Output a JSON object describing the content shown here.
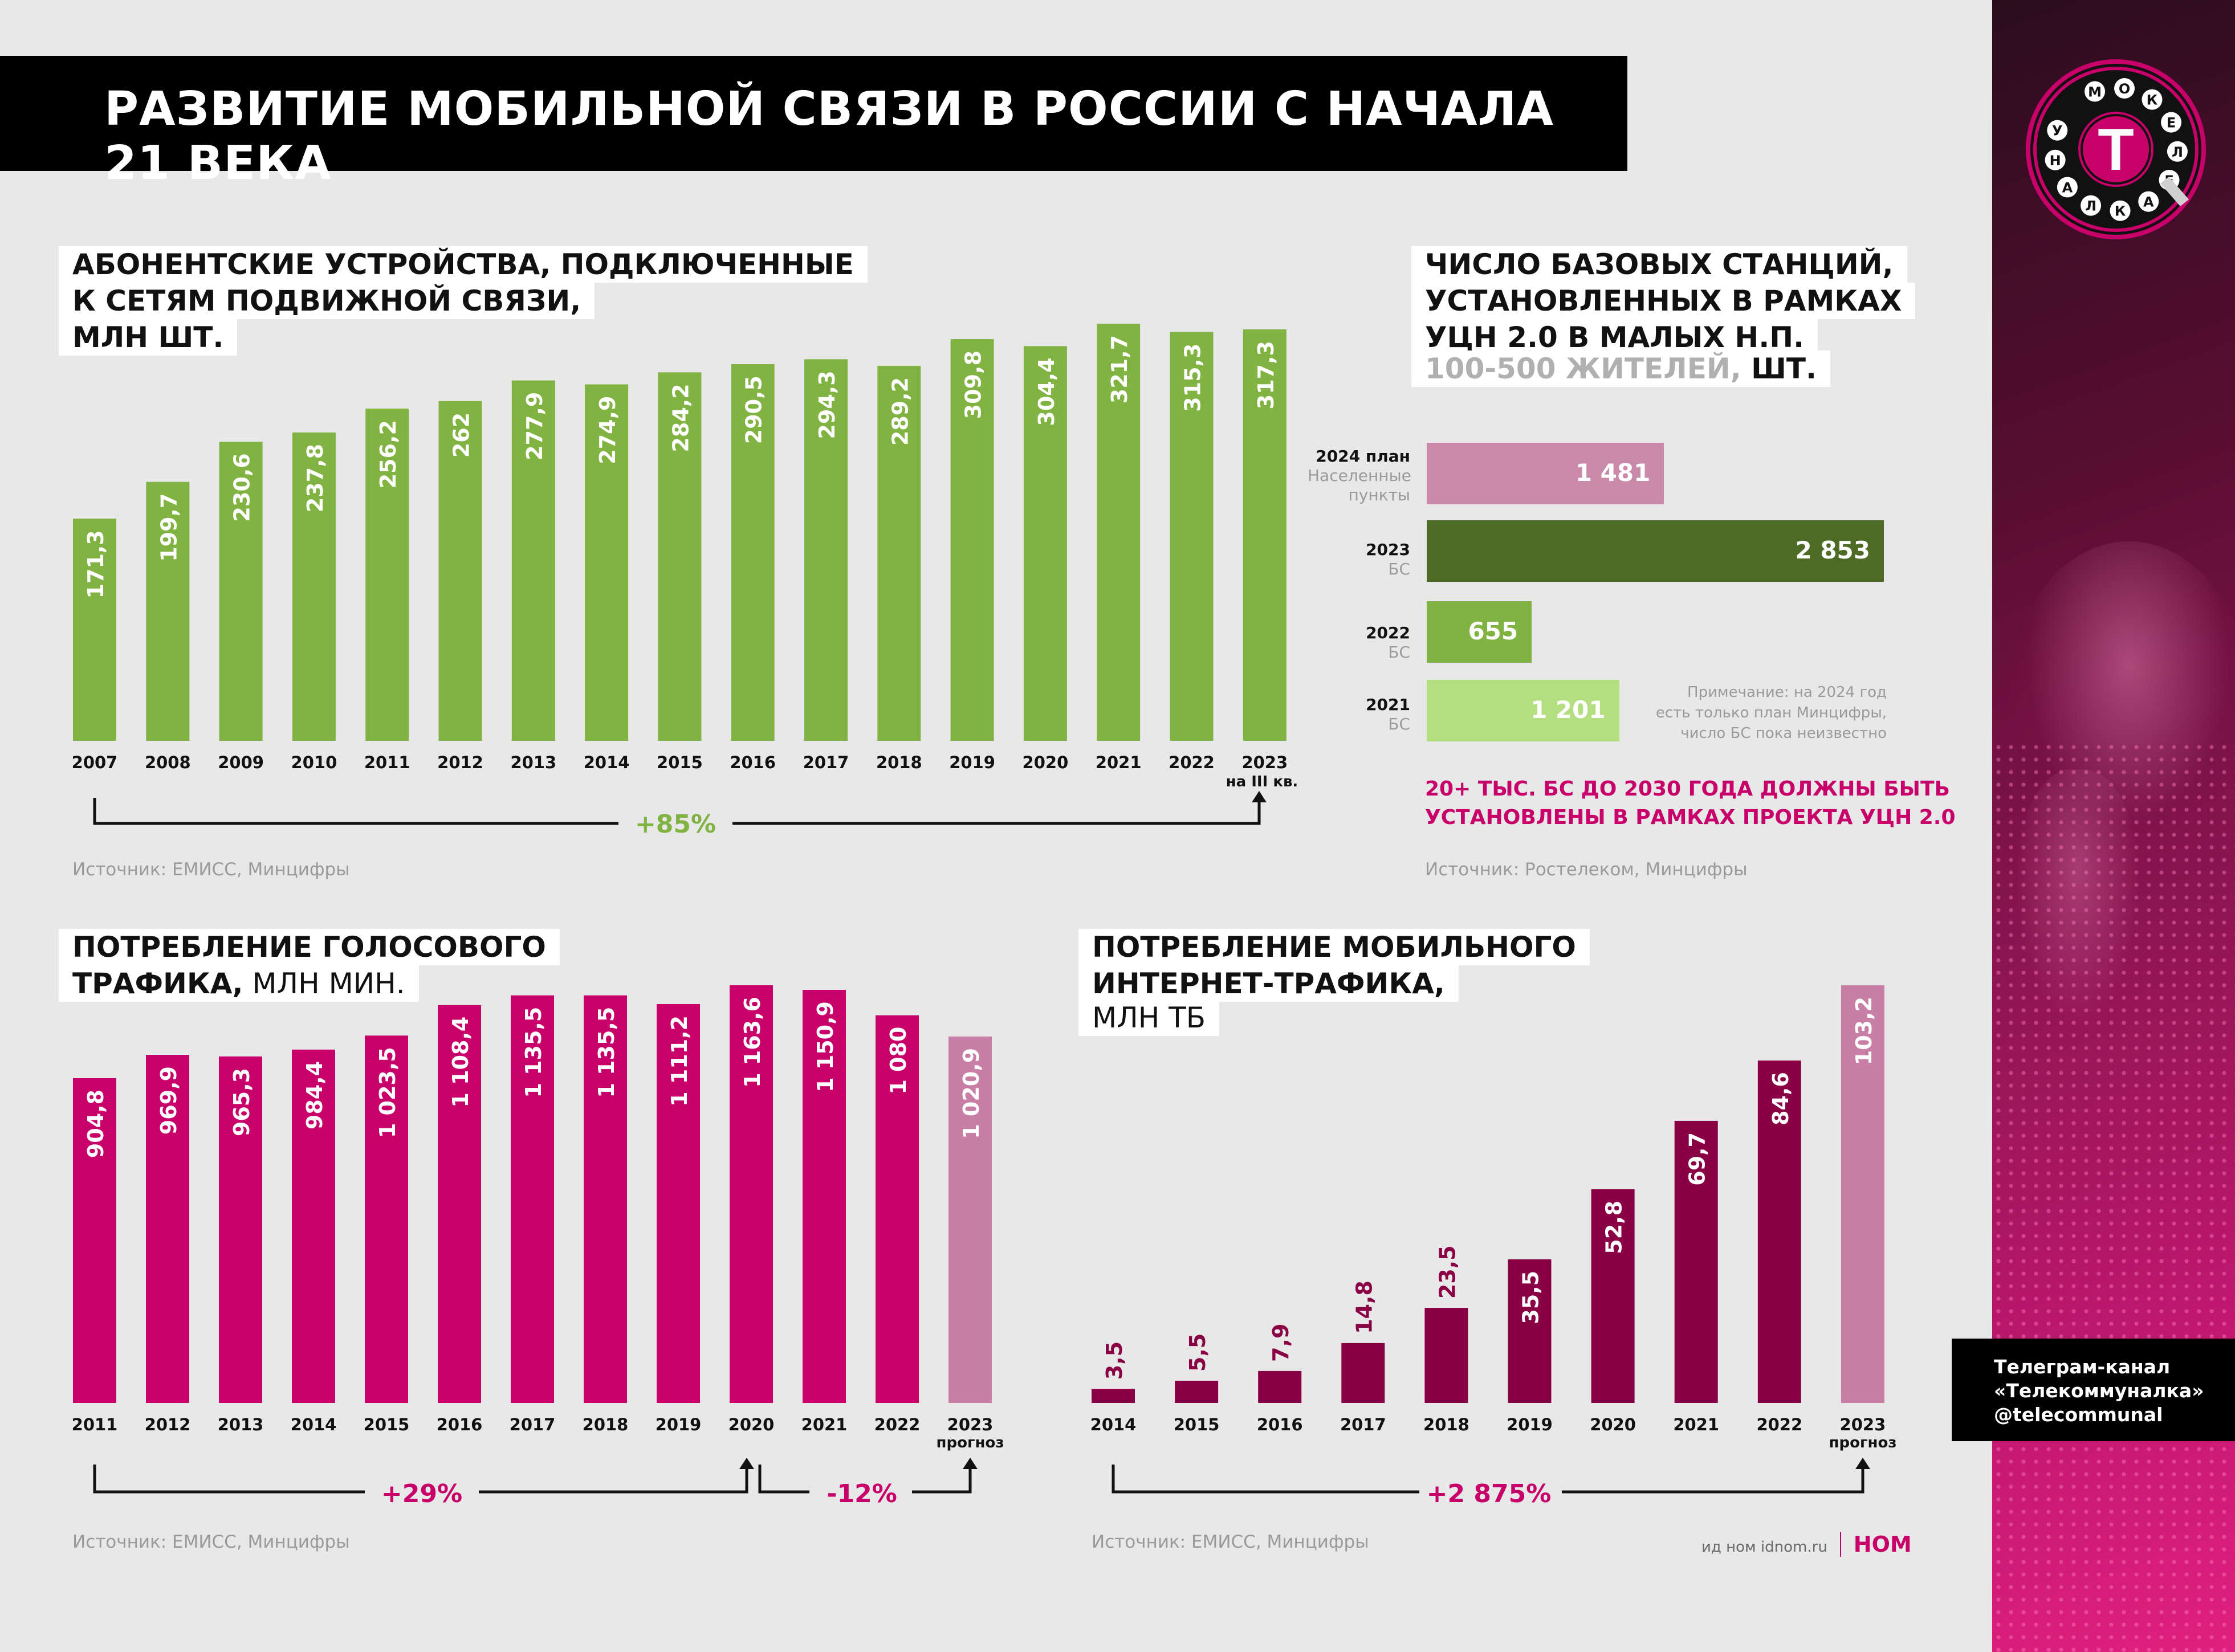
{
  "title": "РАЗВИТИЕ МОБИЛЬНОЙ СВЯЗИ В РОССИИ С НАЧАЛА 21 ВЕКА",
  "logo": {
    "letter": "T",
    "ring": [
      "М",
      "О",
      "К",
      "Е",
      "Л",
      "Е",
      "А",
      "К",
      "Л",
      "А",
      "Н",
      "У"
    ]
  },
  "devices": {
    "title_lines": [
      "АБОНЕНТСКИЕ УСТРОЙСТВА, ПОДКЛЮЧЕННЫЕ",
      "К СЕТЯМ ПОДВИЖНОЙ СВЯЗИ,",
      "МЛН ШТ."
    ],
    "note_2023": "на III кв.",
    "growth": "+85%",
    "source": "Источник: ЕМИСС, Минцифры",
    "color": "#80b341"
  },
  "base_stations": {
    "title_lines": [
      "ЧИСЛО БАЗОВЫХ СТАНЦИЙ,",
      "УСТАНОВЛЕННЫХ В РАМКАХ",
      "УЦН 2.0 В МАЛЫХ Н.П."
    ],
    "title_grey": "100-500 ЖИТЕЛЕЙ,",
    "title_tail": " ШТ.",
    "rows": [
      {
        "year": "2024 план",
        "sub": "Населенные пункты",
        "value_label": "1 481",
        "value": 1481,
        "color": "#c98aa9"
      },
      {
        "year": "2023",
        "sub": "БС",
        "value_label": "2 853",
        "value": 2853,
        "color": "#4d6b24"
      },
      {
        "year": "2022",
        "sub": "БС",
        "value_label": "655",
        "value": 655,
        "color": "#80b341"
      },
      {
        "year": "2021",
        "sub": "БС",
        "value_label": "1 201",
        "value": 1201,
        "color": "#b4df80"
      }
    ],
    "note_lines": [
      "Примечание: на 2024 год",
      "есть только план Минцифры,",
      "число БС пока неизвестно"
    ],
    "pink_lines": [
      "20+ ТЫС. БС ДО 2030 ГОДА ДОЛЖНЫ БЫТЬ",
      "УСТАНОВЛЕНЫ В РАМКАХ ПРОЕКТА УЦН 2.0"
    ],
    "source": "Источник: Ростелеком, Минцифры"
  },
  "voice": {
    "title_lines": [
      "ПОТРЕБЛЕНИЕ ГОЛОСОВОГО",
      "ТРАФИКА,"
    ],
    "title_tail": " МЛН МИН.",
    "note_2023": "прогноз",
    "growth_1": "+29%",
    "growth_2": "-12%",
    "source": "Источник: ЕМИСС, Минцифры",
    "color": "#c8006a",
    "forecast_color": "#c97fa5"
  },
  "internet": {
    "title_lines": [
      "ПОТРЕБЛЕНИЕ МОБИЛЬНОГО",
      "ИНТЕРНЕТ-ТРАФИКА,",
      "МЛН ТБ"
    ],
    "note_2023": "прогноз",
    "growth": "+2 875%",
    "source": "Источник: ЕМИСС, Минцифры",
    "color": "#8a0045",
    "forecast_color": "#c97fa5"
  },
  "telegram": [
    "Телеграм-канал",
    "«Телекоммуналка»",
    "@telecommunal"
  ],
  "footer": {
    "text": "ид ном idnom.ru",
    "brand": "НОМ"
  },
  "chart_data": [
    {
      "type": "bar",
      "title": "Абонентские устройства, подключенные к сетям подвижной связи, млн шт.",
      "categories": [
        "2007",
        "2008",
        "2009",
        "2010",
        "2011",
        "2012",
        "2013",
        "2014",
        "2015",
        "2016",
        "2017",
        "2018",
        "2019",
        "2020",
        "2021",
        "2022",
        "2023"
      ],
      "values": [
        171.3,
        199.7,
        230.6,
        237.8,
        256.2,
        262,
        277.9,
        274.9,
        284.2,
        290.5,
        294.3,
        289.2,
        309.8,
        304.4,
        321.7,
        315.3,
        317.3
      ],
      "labels": [
        "171,3",
        "199,7",
        "230,6",
        "237,8",
        "256,2",
        "262",
        "277,9",
        "274,9",
        "284,2",
        "290,5",
        "294,3",
        "289,2",
        "309,8",
        "304,4",
        "321,7",
        "315,3",
        "317,3"
      ],
      "ylim": [
        0,
        321.7
      ]
    },
    {
      "type": "bar",
      "title": "Потребление голосового трафика, млн мин.",
      "categories": [
        "2011",
        "2012",
        "2013",
        "2014",
        "2015",
        "2016",
        "2017",
        "2018",
        "2019",
        "2020",
        "2021",
        "2022",
        "2023"
      ],
      "values": [
        904.8,
        969.9,
        965.3,
        984.4,
        1023.5,
        1108.4,
        1135.5,
        1135.5,
        1111.2,
        1163.6,
        1150.9,
        1080,
        1020.9
      ],
      "labels": [
        "904,8",
        "969,9",
        "965,3",
        "984,4",
        "1 023,5",
        "1 108,4",
        "1 135,5",
        "1 135,5",
        "1 111,2",
        "1 163,6",
        "1 150,9",
        "1 080",
        "1 020,9"
      ],
      "forecast": [
        false,
        false,
        false,
        false,
        false,
        false,
        false,
        false,
        false,
        false,
        false,
        false,
        true
      ],
      "ylim": [
        0,
        1163.6
      ]
    },
    {
      "type": "bar",
      "title": "Потребление мобильного интернет-трафика, млн ТБ",
      "categories": [
        "2014",
        "2015",
        "2016",
        "2017",
        "2018",
        "2019",
        "2020",
        "2021",
        "2022",
        "2023"
      ],
      "values": [
        3.5,
        5.5,
        7.9,
        14.8,
        23.5,
        35.5,
        52.8,
        69.7,
        84.6,
        103.2
      ],
      "labels": [
        "3,5",
        "5,5",
        "7,9",
        "14,8",
        "23,5",
        "35,5",
        "52,8",
        "69,7",
        "84,6",
        "103,2"
      ],
      "forecast": [
        false,
        false,
        false,
        false,
        false,
        false,
        false,
        false,
        false,
        true
      ],
      "ylim": [
        0,
        103.2
      ]
    },
    {
      "type": "bar",
      "title": "Число базовых станций, установленных в рамках УЦН 2.0 в малых н.п. (100-500 жителей), шт.",
      "orientation": "horizontal",
      "categories": [
        "2024 план",
        "2023",
        "2022",
        "2021"
      ],
      "values": [
        1481,
        2853,
        655,
        1201
      ]
    }
  ]
}
